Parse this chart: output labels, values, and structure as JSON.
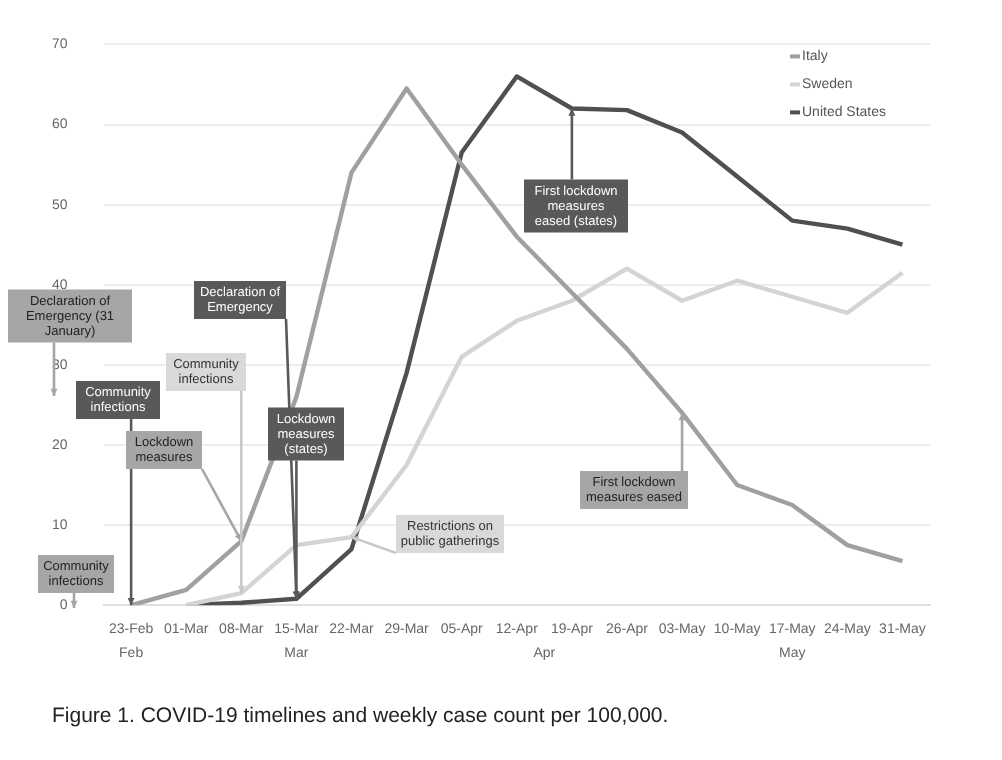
{
  "chart_data": {
    "type": "line",
    "title": "Figure 1. COVID-19 timelines and weekly case count per 100,000.",
    "categories": [
      "23-Feb",
      "01-Mar",
      "08-Mar",
      "15-Mar",
      "22-Mar",
      "29-Mar",
      "05-Apr",
      "12-Apr",
      "19-Apr",
      "26-Apr",
      "03-May",
      "10-May",
      "17-May",
      "24-May",
      "31-May"
    ],
    "series": [
      {
        "name": "Italy",
        "color": "#a0a0a0",
        "values": [
          0,
          1.9,
          8,
          26,
          54,
          64.5,
          55,
          46,
          39,
          32,
          24,
          15,
          12.5,
          7.5,
          5.5
        ]
      },
      {
        "name": "Sweden",
        "color": "#d4d4d4",
        "values": [
          null,
          0,
          1.5,
          7.5,
          8.5,
          17.5,
          31,
          35.5,
          38,
          42,
          38,
          40.5,
          38.5,
          36.5,
          41.5
        ]
      },
      {
        "name": "United States",
        "color": "#505050",
        "values": [
          null,
          0,
          0.3,
          0.8,
          7,
          29,
          56.5,
          66,
          62,
          61.8,
          59,
          53.5,
          48,
          47,
          45
        ]
      }
    ],
    "ylim": [
      0,
      70
    ],
    "yticks": [
      0,
      10,
      20,
      30,
      40,
      50,
      60,
      70
    ],
    "grid": "y",
    "legend": "top right",
    "marker": "none",
    "line_style": "solid",
    "annotations": [
      "Feb",
      "Mar",
      "Apr",
      "May",
      "Declaration of Emergency (31 January)",
      {
        "text": "Community infections",
        "x": "23-Feb",
        "y": 0
      },
      "Community infections",
      {
        "text": "Lockdown measures",
        "x": "08-Mar",
        "y": 8
      },
      {
        "text": "Declaration of Emergency",
        "x": "15-Mar",
        "y": 0.8
      },
      {
        "text": "Community infections",
        "x": "08-Mar",
        "y": 1.5
      },
      {
        "text": "Lockdown measures (states)",
        "x": "15-Mar",
        "y": 0.8
      },
      {
        "text": "Restrictions on public gatherings",
        "x": "22-Mar",
        "y": 8.5
      },
      {
        "text": "First lockdown measures eased (states)",
        "x": "19-Apr",
        "y": 62
      },
      {
        "text": "First lockdown measures eased",
        "x": "03-May",
        "y": 24
      }
    ]
  }
}
